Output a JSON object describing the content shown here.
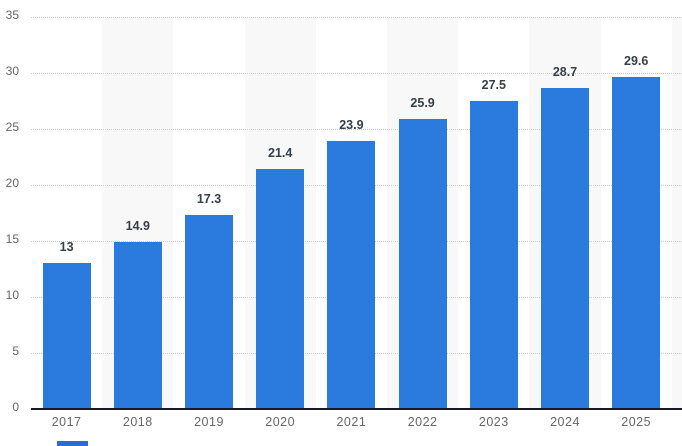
{
  "chart_data": {
    "type": "bar",
    "title": "",
    "categories": [
      "2017",
      "2018",
      "2019",
      "2020",
      "2021",
      "2022",
      "2023",
      "2024",
      "2025"
    ],
    "values": [
      13,
      14.9,
      17.3,
      21.4,
      23.9,
      25.9,
      27.5,
      28.7,
      29.6
    ],
    "value_labels": [
      "13",
      "14.9",
      "17.3",
      "21.4",
      "23.9",
      "25.9",
      "27.5",
      "28.7",
      "29.6"
    ],
    "xlabel": "",
    "ylabel": "",
    "ylim": [
      0,
      35
    ],
    "yticks": [
      0,
      5,
      10,
      15,
      20,
      25,
      30,
      35
    ],
    "grid": "horizontal-dotted",
    "legend_position": "none",
    "alternating_column_bands": true,
    "colors": {
      "bar": "#2b7bde",
      "column_band": "#f8f8f8",
      "gridline": "#cccccc",
      "axis_line": "#17191c",
      "value_label": "#36404a",
      "tick_label": "#666666",
      "background": "#ffffff",
      "cropped_element": "#2b6bd9"
    }
  }
}
